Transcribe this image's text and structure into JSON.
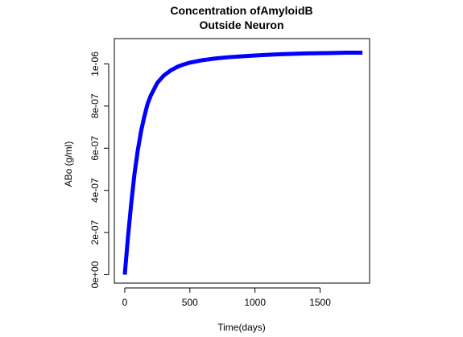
{
  "chart_data": {
    "type": "line",
    "title_lines": [
      "Concentration ofAmyloidB",
      "Outside Neuron"
    ],
    "xlabel": "Time(days)",
    "ylabel": "ABo (g/ml)",
    "xlim": [
      -80,
      1880
    ],
    "ylim": [
      -4e-08,
      1.12e-06
    ],
    "x_ticks": [
      0,
      500,
      1000,
      1500
    ],
    "x_tick_labels": [
      "0",
      "500",
      "1000",
      "1500"
    ],
    "y_ticks": [
      0,
      2e-07,
      4e-07,
      6e-07,
      8e-07,
      1e-06
    ],
    "y_tick_labels": [
      "0e+00",
      "2e-07",
      "4e-07",
      "6e-07",
      "8e-07",
      "1e-06"
    ],
    "grid": false,
    "series": [
      {
        "color": "#0000ff",
        "x": [
          0,
          25,
          50,
          75,
          100,
          125,
          150,
          175,
          200,
          250,
          300,
          350,
          400,
          450,
          500,
          600,
          700,
          800,
          900,
          1000,
          1100,
          1200,
          1300,
          1400,
          1500,
          1600,
          1700,
          1825
        ],
        "y": [
          0.0,
          1.8e-07,
          3.4e-07,
          4.8e-07,
          5.9e-07,
          6.8e-07,
          7.5e-07,
          8.1e-07,
          8.5e-07,
          9.1e-07,
          9.45e-07,
          9.68e-07,
          9.85e-07,
          9.97e-07,
          1.006e-06,
          1.018e-06,
          1.026e-06,
          1.032e-06,
          1.036e-06,
          1.04e-06,
          1.043e-06,
          1.046e-06,
          1.048e-06,
          1.05e-06,
          1.051e-06,
          1.052e-06,
          1.053e-06,
          1.053e-06
        ]
      }
    ]
  }
}
